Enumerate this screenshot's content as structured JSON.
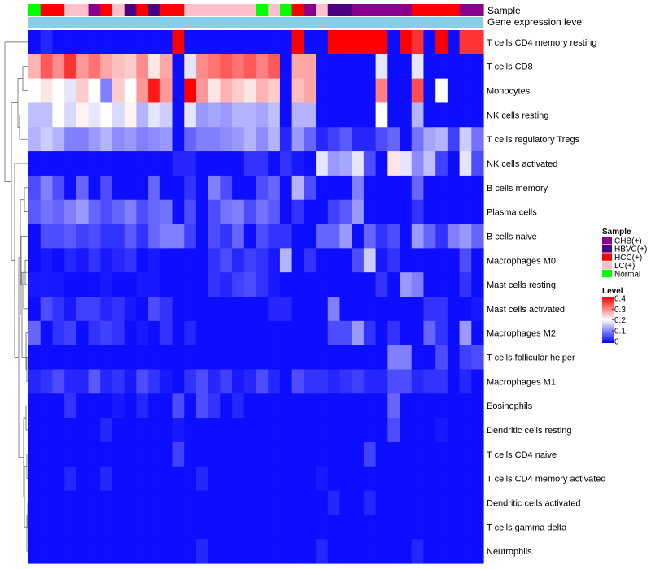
{
  "chart_data": {
    "type": "heatmap",
    "title": "",
    "annotation_tracks": [
      "Sample",
      "Gene expression level"
    ],
    "rows": [
      "T cells CD4 memory resting",
      "T cells CD8",
      "Monocytes",
      "NK cells resting",
      "T cells regulatory  Tregs",
      "NK cells activated",
      "B cells memory",
      "Plasma cells",
      "B cells naive",
      "Macrophages M0",
      "Mast cells resting",
      "Mast cells activated",
      "Macrophages M2",
      "T cells follicular helper",
      "Macrophages M1",
      "Eosinophils",
      "Dendritic cells resting",
      "T cells CD4 naive",
      "T cells CD4 memory activated",
      "Dendritic cells activated",
      "T cells gamma delta",
      "Neutrophils"
    ],
    "sample_groups": [
      "Normal",
      "HCC(+)",
      "HCC(+)",
      "LC(+)",
      "LC(+)",
      "CHB(+)",
      "HCC(+)",
      "LC(+)",
      "HBVC(+)",
      "HCC(+)",
      "HBVC(+)",
      "HCC(+)",
      "HCC(+)",
      "LC(+)",
      "LC(+)",
      "LC(+)",
      "LC(+)",
      "LC(+)",
      "LC(+)",
      "Normal",
      "LC(+)",
      "Normal",
      "HCC(+)",
      "CHB(+)",
      "LC(+)",
      "HBVC(+)",
      "HBVC(+)",
      "CHB(+)",
      "CHB(+)",
      "CHB(+)",
      "CHB(+)",
      "CHB(+)",
      "HCC(+)",
      "HCC(+)",
      "HCC(+)",
      "HCC(+)",
      "CHB(+)",
      "CHB(+)"
    ],
    "values": [
      [
        0.01,
        0.03,
        0.01,
        0.01,
        0.01,
        0.01,
        0.01,
        0.01,
        0.01,
        0.01,
        0.01,
        0.01,
        0.42,
        0.01,
        0.01,
        0.01,
        0.01,
        0.01,
        0.01,
        0.01,
        0.01,
        0.01,
        0.42,
        0.01,
        0.01,
        0.42,
        0.42,
        0.42,
        0.42,
        0.42,
        0.01,
        0.42,
        0.36,
        0.01,
        0.42,
        0.01,
        0.36,
        0.36
      ],
      [
        0.26,
        0.33,
        0.29,
        0.36,
        0.28,
        0.31,
        0.27,
        0.25,
        0.24,
        0.29,
        0.22,
        0.27,
        0.01,
        0.18,
        0.29,
        0.31,
        0.33,
        0.31,
        0.33,
        0.3,
        0.33,
        0.01,
        0.27,
        0.27,
        0.01,
        0.01,
        0.01,
        0.01,
        0.01,
        0.18,
        0.01,
        0.01,
        0.18,
        0.01,
        0.01,
        0.01,
        0.01,
        0.01
      ],
      [
        0.2,
        0.22,
        0.2,
        0.18,
        0.24,
        0.2,
        0.1,
        0.24,
        0.2,
        0.28,
        0.38,
        0.28,
        0.01,
        0.42,
        0.28,
        0.22,
        0.26,
        0.24,
        0.22,
        0.26,
        0.24,
        0.01,
        0.25,
        0.27,
        0.01,
        0.01,
        0.01,
        0.01,
        0.01,
        0.3,
        0.01,
        0.01,
        0.34,
        0.01,
        0.2,
        0.01,
        0.01,
        0.01
      ],
      [
        0.15,
        0.15,
        0.2,
        0.17,
        0.21,
        0.18,
        0.2,
        0.17,
        0.21,
        0.14,
        0.18,
        0.16,
        0.01,
        0.18,
        0.12,
        0.13,
        0.12,
        0.14,
        0.14,
        0.13,
        0.15,
        0.01,
        0.14,
        0.14,
        0.01,
        0.01,
        0.01,
        0.01,
        0.01,
        0.2,
        0.01,
        0.01,
        0.14,
        0.01,
        0.01,
        0.01,
        0.01,
        0.01
      ],
      [
        0.14,
        0.16,
        0.14,
        0.1,
        0.1,
        0.12,
        0.14,
        0.11,
        0.12,
        0.1,
        0.11,
        0.12,
        0.01,
        0.08,
        0.1,
        0.1,
        0.11,
        0.12,
        0.14,
        0.11,
        0.14,
        0.03,
        0.12,
        0.08,
        0.03,
        0.05,
        0.07,
        0.03,
        0.03,
        0.06,
        0.08,
        0.01,
        0.09,
        0.13,
        0.14,
        0.05,
        0.16,
        0.09
      ],
      [
        0.01,
        0.01,
        0.01,
        0.01,
        0.01,
        0.01,
        0.01,
        0.01,
        0.01,
        0.01,
        0.01,
        0.01,
        0.03,
        0.03,
        0.01,
        0.01,
        0.01,
        0.01,
        0.04,
        0.04,
        0.01,
        0.04,
        0.02,
        0.01,
        0.18,
        0.12,
        0.13,
        0.18,
        0.06,
        0.01,
        0.22,
        0.18,
        0.11,
        0.15,
        0.05,
        0.01,
        0.18,
        0.06
      ],
      [
        0.06,
        0.1,
        0.06,
        0.01,
        0.08,
        0.01,
        0.06,
        0.01,
        0.01,
        0.01,
        0.08,
        0.01,
        0.01,
        0.04,
        0.01,
        0.1,
        0.06,
        0.01,
        0.01,
        0.06,
        0.08,
        0.01,
        0.14,
        0.06,
        0.01,
        0.01,
        0.01,
        0.1,
        0.01,
        0.01,
        0.01,
        0.01,
        0.08,
        0.01,
        0.01,
        0.01,
        0.01,
        0.01
      ],
      [
        0.07,
        0.09,
        0.08,
        0.1,
        0.12,
        0.08,
        0.06,
        0.08,
        0.1,
        0.06,
        0.08,
        0.09,
        0.01,
        0.06,
        0.01,
        0.06,
        0.09,
        0.1,
        0.06,
        0.09,
        0.07,
        0.01,
        0.04,
        0.01,
        0.01,
        0.05,
        0.07,
        0.12,
        0.01,
        0.01,
        0.01,
        0.01,
        0.04,
        0.01,
        0.01,
        0.01,
        0.01,
        0.01
      ],
      [
        0.01,
        0.06,
        0.06,
        0.07,
        0.05,
        0.06,
        0.04,
        0.04,
        0.07,
        0.04,
        0.08,
        0.1,
        0.1,
        0.05,
        0.01,
        0.06,
        0.04,
        0.08,
        0.01,
        0.06,
        0.04,
        0.04,
        0.01,
        0.01,
        0.08,
        0.08,
        0.12,
        0.01,
        0.08,
        0.04,
        0.06,
        0.01,
        0.12,
        0.08,
        0.04,
        0.1,
        0.12,
        0.08
      ],
      [
        0.01,
        0.02,
        0.01,
        0.03,
        0.02,
        0.04,
        0.02,
        0.03,
        0.04,
        0.01,
        0.02,
        0.01,
        0.01,
        0.01,
        0.01,
        0.04,
        0.06,
        0.03,
        0.05,
        0.04,
        0.02,
        0.14,
        0.01,
        0.04,
        0.01,
        0.01,
        0.01,
        0.06,
        0.16,
        0.02,
        0.04,
        0.01,
        0.01,
        0.01,
        0.01,
        0.01,
        0.06,
        0.01
      ],
      [
        0.02,
        0.02,
        0.02,
        0.01,
        0.01,
        0.01,
        0.02,
        0.01,
        0.01,
        0.02,
        0.02,
        0.01,
        0.01,
        0.01,
        0.01,
        0.04,
        0.03,
        0.05,
        0.06,
        0.04,
        0.02,
        0.01,
        0.01,
        0.01,
        0.01,
        0.01,
        0.01,
        0.01,
        0.01,
        0.04,
        0.01,
        0.12,
        0.1,
        0.01,
        0.01,
        0.01,
        0.04,
        0.01
      ],
      [
        0.01,
        0.06,
        0.04,
        0.02,
        0.05,
        0.05,
        0.03,
        0.04,
        0.02,
        0.01,
        0.06,
        0.04,
        0.01,
        0.01,
        0.01,
        0.01,
        0.01,
        0.01,
        0.01,
        0.01,
        0.03,
        0.03,
        0.01,
        0.01,
        0.01,
        0.1,
        0.01,
        0.01,
        0.01,
        0.01,
        0.01,
        0.01,
        0.01,
        0.04,
        0.04,
        0.01,
        0.01,
        0.02
      ],
      [
        0.08,
        0.01,
        0.04,
        0.05,
        0.01,
        0.04,
        0.05,
        0.04,
        0.01,
        0.02,
        0.01,
        0.04,
        0.01,
        0.03,
        0.01,
        0.01,
        0.01,
        0.01,
        0.01,
        0.01,
        0.01,
        0.01,
        0.01,
        0.01,
        0.01,
        0.06,
        0.06,
        0.12,
        0.04,
        0.01,
        0.04,
        0.01,
        0.01,
        0.08,
        0.04,
        0.01,
        0.12,
        0.01
      ],
      [
        0.01,
        0.01,
        0.01,
        0.01,
        0.01,
        0.01,
        0.01,
        0.01,
        0.01,
        0.01,
        0.01,
        0.01,
        0.01,
        0.01,
        0.01,
        0.01,
        0.01,
        0.01,
        0.01,
        0.01,
        0.01,
        0.01,
        0.01,
        0.01,
        0.01,
        0.01,
        0.01,
        0.01,
        0.01,
        0.01,
        0.1,
        0.1,
        0.01,
        0.01,
        0.06,
        0.01,
        0.05,
        0.06
      ],
      [
        0.03,
        0.04,
        0.06,
        0.03,
        0.03,
        0.07,
        0.03,
        0.04,
        0.02,
        0.06,
        0.04,
        0.02,
        0.01,
        0.04,
        0.06,
        0.03,
        0.05,
        0.02,
        0.03,
        0.06,
        0.03,
        0.01,
        0.06,
        0.04,
        0.04,
        0.03,
        0.04,
        0.05,
        0.03,
        0.03,
        0.06,
        0.06,
        0.03,
        0.04,
        0.04,
        0.01,
        0.03,
        0.01
      ],
      [
        0.01,
        0.01,
        0.01,
        0.04,
        0.01,
        0.01,
        0.01,
        0.02,
        0.01,
        0.03,
        0.01,
        0.01,
        0.06,
        0.01,
        0.06,
        0.04,
        0.01,
        0.03,
        0.01,
        0.01,
        0.01,
        0.01,
        0.01,
        0.01,
        0.01,
        0.01,
        0.01,
        0.01,
        0.01,
        0.01,
        0.08,
        0.01,
        0.01,
        0.01,
        0.01,
        0.01,
        0.01,
        0.01
      ],
      [
        0.01,
        0.01,
        0.01,
        0.01,
        0.01,
        0.01,
        0.03,
        0.01,
        0.01,
        0.01,
        0.01,
        0.01,
        0.02,
        0.01,
        0.01,
        0.01,
        0.01,
        0.01,
        0.01,
        0.01,
        0.01,
        0.01,
        0.01,
        0.01,
        0.01,
        0.01,
        0.01,
        0.01,
        0.01,
        0.01,
        0.06,
        0.01,
        0.01,
        0.01,
        0.02,
        0.01,
        0.01,
        0.01
      ],
      [
        0.01,
        0.01,
        0.01,
        0.01,
        0.01,
        0.01,
        0.01,
        0.01,
        0.01,
        0.01,
        0.01,
        0.01,
        0.05,
        0.01,
        0.01,
        0.01,
        0.01,
        0.01,
        0.01,
        0.01,
        0.01,
        0.01,
        0.01,
        0.01,
        0.01,
        0.01,
        0.01,
        0.01,
        0.05,
        0.01,
        0.01,
        0.01,
        0.01,
        0.01,
        0.01,
        0.01,
        0.01,
        0.01
      ],
      [
        0.01,
        0.01,
        0.01,
        0.03,
        0.01,
        0.01,
        0.03,
        0.01,
        0.01,
        0.01,
        0.01,
        0.01,
        0.01,
        0.01,
        0.03,
        0.01,
        0.01,
        0.01,
        0.01,
        0.01,
        0.01,
        0.01,
        0.01,
        0.01,
        0.02,
        0.01,
        0.01,
        0.01,
        0.01,
        0.01,
        0.01,
        0.01,
        0.01,
        0.01,
        0.01,
        0.01,
        0.01,
        0.01
      ],
      [
        0.01,
        0.01,
        0.01,
        0.01,
        0.01,
        0.01,
        0.01,
        0.01,
        0.01,
        0.01,
        0.01,
        0.01,
        0.01,
        0.01,
        0.01,
        0.01,
        0.01,
        0.01,
        0.01,
        0.01,
        0.01,
        0.01,
        0.01,
        0.01,
        0.01,
        0.03,
        0.01,
        0.01,
        0.03,
        0.01,
        0.01,
        0.01,
        0.01,
        0.01,
        0.01,
        0.01,
        0.01,
        0.01
      ],
      [
        0.01,
        0.01,
        0.01,
        0.01,
        0.01,
        0.01,
        0.01,
        0.01,
        0.01,
        0.01,
        0.01,
        0.01,
        0.01,
        0.01,
        0.01,
        0.01,
        0.01,
        0.01,
        0.01,
        0.01,
        0.01,
        0.01,
        0.01,
        0.01,
        0.01,
        0.01,
        0.01,
        0.01,
        0.01,
        0.01,
        0.01,
        0.01,
        0.01,
        0.01,
        0.01,
        0.01,
        0.01,
        0.01
      ],
      [
        0.01,
        0.01,
        0.01,
        0.01,
        0.01,
        0.01,
        0.01,
        0.01,
        0.01,
        0.01,
        0.01,
        0.01,
        0.01,
        0.01,
        0.03,
        0.01,
        0.01,
        0.01,
        0.01,
        0.01,
        0.01,
        0.01,
        0.01,
        0.01,
        0.03,
        0.01,
        0.01,
        0.01,
        0.01,
        0.01,
        0.01,
        0.01,
        0.03,
        0.01,
        0.01,
        0.01,
        0.01,
        0.01
      ]
    ],
    "legends": {
      "sample": {
        "title": "Sample",
        "items": [
          {
            "label": "CHB(+)",
            "color": "#8b008b"
          },
          {
            "label": "HBVC(+)",
            "color": "#4b0082"
          },
          {
            "label": "HCC(+)",
            "color": "#ff0000"
          },
          {
            "label": "LC(+)",
            "color": "#ffc0cb"
          },
          {
            "label": "Normal",
            "color": "#00ff00"
          }
        ]
      },
      "level": {
        "title": "Level",
        "range": [
          0,
          0.4
        ],
        "ticks": [
          "0.4",
          "0.3",
          "0.2",
          "0.1",
          "0"
        ]
      }
    },
    "colors": {
      "low": "#0000ff",
      "mid": "#ffffff",
      "high": "#ff0000",
      "gene_expression_track": "#87ceeb"
    }
  }
}
